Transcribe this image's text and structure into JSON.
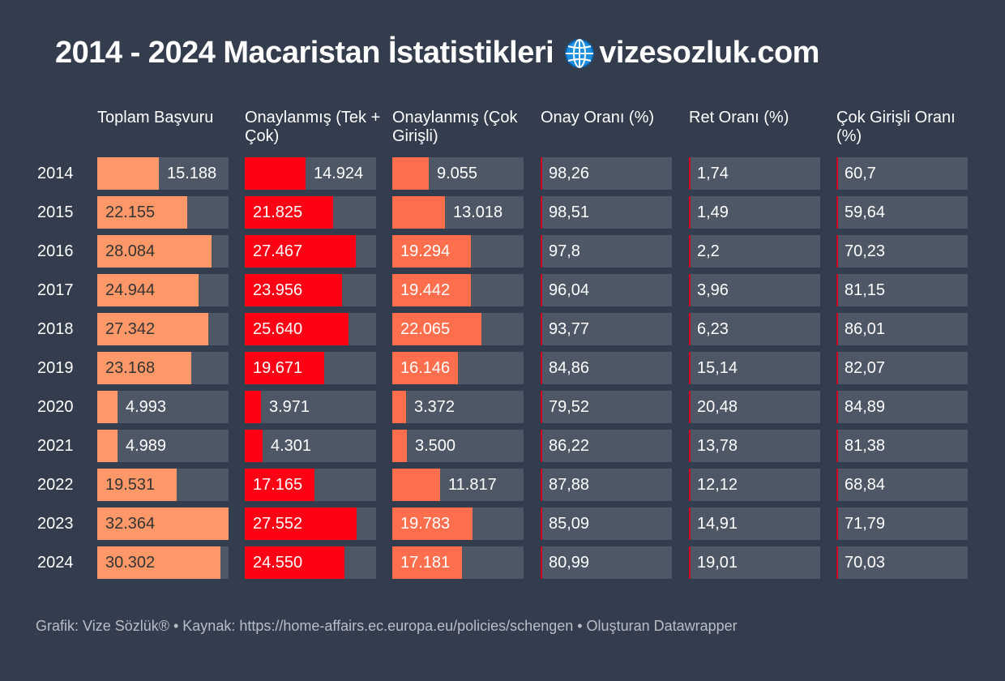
{
  "title": "2014 - 2024 Macaristan İstatistikleri",
  "title_site": "vizesozluk.com",
  "title_icon": "globe-icon",
  "footer": "Grafik: Vize Sözlük® • Kaynak: https://home-affairs.ec.europa.eu/policies/schengen • Oluşturan Datawrapper",
  "colors": {
    "background": "#333d4d",
    "cell": "#4d5765",
    "applications": "#ff9868",
    "approved_total": "#ff0015",
    "approved_multi": "#ff6f4e",
    "rate_marker": "#d0021b"
  },
  "chart_data": {
    "type": "table",
    "title": "2014 - 2024 Macaristan İstatistikleri",
    "columns": [
      {
        "key": "applications",
        "label": "Toplam Başvuru",
        "display": "bar",
        "max": 32364
      },
      {
        "key": "approved_total",
        "label": "Onaylanmış (Tek + Çok)",
        "display": "bar",
        "max": 32364
      },
      {
        "key": "approved_multi",
        "label": "Onaylanmış (Çok Girişli)",
        "display": "bar",
        "max": 32364
      },
      {
        "key": "approval_rate",
        "label": "Onay Oranı (%)",
        "display": "rate"
      },
      {
        "key": "refusal_rate",
        "label": "Ret Oranı (%)",
        "display": "rate"
      },
      {
        "key": "multi_rate",
        "label": "Çok Girişli Oranı (%)",
        "display": "rate"
      }
    ],
    "rows": [
      {
        "year": "2014",
        "applications": "15.188",
        "approved_total": "14.924",
        "approved_multi": "9.055",
        "approval_rate": "98,26",
        "refusal_rate": "1,74",
        "multi_rate": "60,7"
      },
      {
        "year": "2015",
        "applications": "22.155",
        "approved_total": "21.825",
        "approved_multi": "13.018",
        "approval_rate": "98,51",
        "refusal_rate": "1,49",
        "multi_rate": "59,64"
      },
      {
        "year": "2016",
        "applications": "28.084",
        "approved_total": "27.467",
        "approved_multi": "19.294",
        "approval_rate": "97,8",
        "refusal_rate": "2,2",
        "multi_rate": "70,23"
      },
      {
        "year": "2017",
        "applications": "24.944",
        "approved_total": "23.956",
        "approved_multi": "19.442",
        "approval_rate": "96,04",
        "refusal_rate": "3,96",
        "multi_rate": "81,15"
      },
      {
        "year": "2018",
        "applications": "27.342",
        "approved_total": "25.640",
        "approved_multi": "22.065",
        "approval_rate": "93,77",
        "refusal_rate": "6,23",
        "multi_rate": "86,01"
      },
      {
        "year": "2019",
        "applications": "23.168",
        "approved_total": "19.671",
        "approved_multi": "16.146",
        "approval_rate": "84,86",
        "refusal_rate": "15,14",
        "multi_rate": "82,07"
      },
      {
        "year": "2020",
        "applications": "4.993",
        "approved_total": "3.971",
        "approved_multi": "3.372",
        "approval_rate": "79,52",
        "refusal_rate": "20,48",
        "multi_rate": "84,89"
      },
      {
        "year": "2021",
        "applications": "4.989",
        "approved_total": "4.301",
        "approved_multi": "3.500",
        "approval_rate": "86,22",
        "refusal_rate": "13,78",
        "multi_rate": "81,38"
      },
      {
        "year": "2022",
        "applications": "19.531",
        "approved_total": "17.165",
        "approved_multi": "11.817",
        "approval_rate": "87,88",
        "refusal_rate": "12,12",
        "multi_rate": "68,84"
      },
      {
        "year": "2023",
        "applications": "32.364",
        "approved_total": "27.552",
        "approved_multi": "19.783",
        "approval_rate": "85,09",
        "refusal_rate": "14,91",
        "multi_rate": "71,79"
      },
      {
        "year": "2024",
        "applications": "30.302",
        "approved_total": "24.550",
        "approved_multi": "17.181",
        "approval_rate": "80,99",
        "refusal_rate": "19,01",
        "multi_rate": "70,03"
      }
    ]
  }
}
